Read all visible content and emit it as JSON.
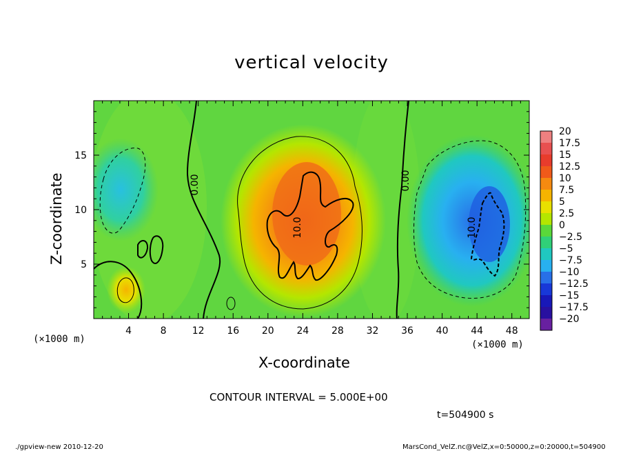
{
  "chart_data": {
    "type": "heatmap",
    "title": "vertical velocity",
    "xlabel": "X-coordinate",
    "ylabel": "Z-coordinate",
    "x_unit": "(×1000 m)",
    "y_unit": "",
    "xlim": [
      0,
      50
    ],
    "ylim": [
      0,
      20
    ],
    "x_ticks": [
      4,
      8,
      12,
      16,
      20,
      24,
      28,
      32,
      36,
      40,
      44,
      48
    ],
    "y_ticks": [
      5,
      10,
      15
    ],
    "colorbar": {
      "levels": [
        "20",
        "17.5",
        "15",
        "12.5",
        "10",
        "7.5",
        "5",
        "2.5",
        "0",
        "−2.5",
        "−5",
        "−7.5",
        "−10",
        "−12.5",
        "−15",
        "−17.5",
        "−20"
      ],
      "colors": [
        "#ee8080",
        "#e85050",
        "#e83c2c",
        "#f05a1a",
        "#f58a10",
        "#f5b400",
        "#e8e000",
        "#b4e600",
        "#5ad83a",
        "#30d078",
        "#20c8c0",
        "#28b0f0",
        "#2870e8",
        "#1838d8",
        "#1818b8",
        "#2810a0",
        "#6820a0"
      ]
    },
    "contour_labels": [
      "0.00",
      "0.00",
      "10.0",
      "10.0"
    ],
    "features": [
      {
        "name": "updraft",
        "x_center": 24,
        "z_center": 9,
        "peak": 13
      },
      {
        "name": "downdraft",
        "x_center": 45.5,
        "z_center": 8,
        "peak": -11
      },
      {
        "name": "weak downdraft",
        "x_center": 3,
        "z_center": 12,
        "peak": -4
      },
      {
        "name": "small updraft",
        "x_center": 3.6,
        "z_center": 2.7,
        "peak": 8
      }
    ]
  },
  "contour_interval": "CONTOUR INTERVAL = 5.000E+00",
  "time_label": "t=504900 s",
  "footer_left": "./gpview-new  2010-12-20",
  "footer_right": "MarsCond_VelZ.nc@VelZ,x=0:50000,z=0:20000,t=504900"
}
